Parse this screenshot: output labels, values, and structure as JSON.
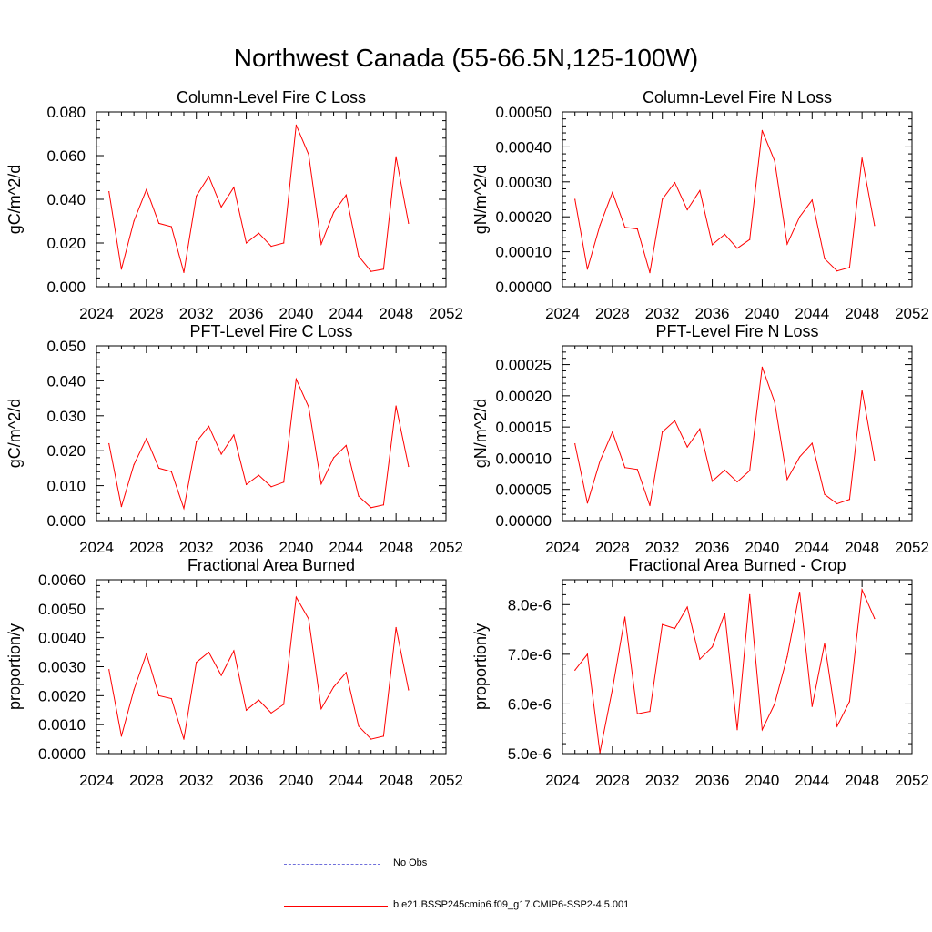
{
  "title": "Northwest Canada (55-66.5N,125-100W)",
  "colors": {
    "series": "#ff0000",
    "obs": "#6f6fdb",
    "axis": "#000000"
  },
  "legend": {
    "obs_label": "No Obs",
    "model_label": "b.e21.BSSP245cmip6.f09_g17.CMIP6-SSP2-4.5.001"
  },
  "chart_data": [
    {
      "type": "line",
      "title": "Column-Level Fire C Loss",
      "ylabel": "gC/m^2/d",
      "xlim": [
        2024,
        2052
      ],
      "ylim": [
        0,
        0.08
      ],
      "xticks": [
        2024,
        2028,
        2032,
        2036,
        2040,
        2044,
        2048,
        2052
      ],
      "yticks": [
        "0.000",
        "0.020",
        "0.040",
        "0.060",
        "0.080"
      ],
      "x": [
        2025,
        2026,
        2027,
        2028,
        2029,
        2030,
        2031,
        2032,
        2033,
        2034,
        2035,
        2036,
        2037,
        2038,
        2039,
        2040,
        2041,
        2042,
        2043,
        2044,
        2045,
        2046,
        2047,
        2048,
        2049
      ],
      "values": [
        0.0435,
        0.008,
        0.03,
        0.0445,
        0.029,
        0.0275,
        0.0065,
        0.0415,
        0.0505,
        0.0365,
        0.0455,
        0.02,
        0.0245,
        0.0185,
        0.02,
        0.074,
        0.0605,
        0.0195,
        0.034,
        0.042,
        0.014,
        0.007,
        0.008,
        0.0595,
        0.029
      ]
    },
    {
      "type": "line",
      "title": "Column-Level Fire N Loss",
      "ylabel": "gN/m^2/d",
      "xlim": [
        2024,
        2052
      ],
      "ylim": [
        0,
        0.0005
      ],
      "xticks": [
        2024,
        2028,
        2032,
        2036,
        2040,
        2044,
        2048,
        2052
      ],
      "yticks": [
        "0.00000",
        "0.00010",
        "0.00020",
        "0.00030",
        "0.00040",
        "0.00050"
      ],
      "x": [
        2025,
        2026,
        2027,
        2028,
        2029,
        2030,
        2031,
        2032,
        2033,
        2034,
        2035,
        2036,
        2037,
        2038,
        2039,
        2040,
        2041,
        2042,
        2043,
        2044,
        2045,
        2046,
        2047,
        2048,
        2049
      ],
      "values": [
        0.00025,
        5e-05,
        0.000175,
        0.00027,
        0.00017,
        0.000165,
        4e-05,
        0.00025,
        0.000298,
        0.00022,
        0.000275,
        0.00012,
        0.00015,
        0.00011,
        0.000135,
        0.000447,
        0.00036,
        0.000122,
        0.0002,
        0.000248,
        8e-05,
        4.5e-05,
        5.5e-05,
        0.000368,
        0.000175
      ]
    },
    {
      "type": "line",
      "title": "PFT-Level Fire C Loss",
      "ylabel": "gC/m^2/d",
      "xlim": [
        2024,
        2052
      ],
      "ylim": [
        0,
        0.05
      ],
      "xticks": [
        2024,
        2028,
        2032,
        2036,
        2040,
        2044,
        2048,
        2052
      ],
      "yticks": [
        "0.000",
        "0.010",
        "0.020",
        "0.030",
        "0.040",
        "0.050"
      ],
      "x": [
        2025,
        2026,
        2027,
        2028,
        2029,
        2030,
        2031,
        2032,
        2033,
        2034,
        2035,
        2036,
        2037,
        2038,
        2039,
        2040,
        2041,
        2042,
        2043,
        2044,
        2045,
        2046,
        2047,
        2048,
        2049
      ],
      "values": [
        0.022,
        0.004,
        0.016,
        0.0235,
        0.015,
        0.014,
        0.0035,
        0.0225,
        0.027,
        0.019,
        0.0245,
        0.0103,
        0.013,
        0.0097,
        0.011,
        0.0405,
        0.0325,
        0.0105,
        0.018,
        0.0215,
        0.007,
        0.0037,
        0.0045,
        0.0328,
        0.0155
      ]
    },
    {
      "type": "line",
      "title": "PFT-Level Fire N Loss",
      "ylabel": "gN/m^2/d",
      "xlim": [
        2024,
        2052
      ],
      "ylim": [
        0,
        0.00028
      ],
      "xticks": [
        2024,
        2028,
        2032,
        2036,
        2040,
        2044,
        2048,
        2052
      ],
      "yticks": [
        "0.00000",
        "0.00005",
        "0.00010",
        "0.00015",
        "0.00020",
        "0.00025"
      ],
      "x": [
        2025,
        2026,
        2027,
        2028,
        2029,
        2030,
        2031,
        2032,
        2033,
        2034,
        2035,
        2036,
        2037,
        2038,
        2039,
        2040,
        2041,
        2042,
        2043,
        2044,
        2045,
        2046,
        2047,
        2048,
        2049
      ],
      "values": [
        0.000123,
        2.8e-05,
        9.5e-05,
        0.000142,
        8.5e-05,
        8.2e-05,
        2.4e-05,
        0.000142,
        0.00016,
        0.000118,
        0.000147,
        6.3e-05,
        8.1e-05,
        6.2e-05,
        8e-05,
        0.000246,
        0.00019,
        6.6e-05,
        0.000102,
        0.000124,
        4.2e-05,
        2.7e-05,
        3.4e-05,
        0.000209,
        9.6e-05
      ]
    },
    {
      "type": "line",
      "title": "Fractional Area Burned",
      "ylabel": "proportion/y",
      "xlim": [
        2024,
        2052
      ],
      "ylim": [
        0,
        0.006
      ],
      "xticks": [
        2024,
        2028,
        2032,
        2036,
        2040,
        2044,
        2048,
        2052
      ],
      "yticks": [
        "0.0000",
        "0.0010",
        "0.0020",
        "0.0030",
        "0.0040",
        "0.0050",
        "0.0060"
      ],
      "x": [
        2025,
        2026,
        2027,
        2028,
        2029,
        2030,
        2031,
        2032,
        2033,
        2034,
        2035,
        2036,
        2037,
        2038,
        2039,
        2040,
        2041,
        2042,
        2043,
        2044,
        2045,
        2046,
        2047,
        2048,
        2049
      ],
      "values": [
        0.0029,
        0.0006,
        0.0022,
        0.00345,
        0.002,
        0.0019,
        0.0005,
        0.00315,
        0.0035,
        0.0027,
        0.00355,
        0.0015,
        0.00185,
        0.0014,
        0.0017,
        0.0054,
        0.00465,
        0.00155,
        0.0023,
        0.0028,
        0.00095,
        0.0005,
        0.0006,
        0.00435,
        0.0022
      ]
    },
    {
      "type": "line",
      "title": "Fractional Area Burned - Crop",
      "ylabel": "proportion/y",
      "xlim": [
        2024,
        2052
      ],
      "ylim": [
        5e-06,
        8.5e-06
      ],
      "xticks": [
        2024,
        2028,
        2032,
        2036,
        2040,
        2044,
        2048,
        2052
      ],
      "ytickvals": [
        5e-06,
        6e-06,
        7e-06,
        8e-06
      ],
      "yticks": [
        "5.0e-6",
        "6.0e-6",
        "7.0e-6",
        "8.0e-6"
      ],
      "x": [
        2025,
        2026,
        2027,
        2028,
        2029,
        2030,
        2031,
        2032,
        2033,
        2034,
        2035,
        2036,
        2037,
        2038,
        2039,
        2040,
        2041,
        2042,
        2043,
        2044,
        2045,
        2046,
        2047,
        2048,
        2049
      ],
      "values": [
        6.68e-06,
        7e-06,
        5.02e-06,
        6.3e-06,
        7.75e-06,
        5.8e-06,
        5.85e-06,
        7.6e-06,
        7.52e-06,
        7.95e-06,
        6.9e-06,
        7.15e-06,
        7.82e-06,
        5.48e-06,
        8.2e-06,
        5.48e-06,
        6e-06,
        6.95e-06,
        8.25e-06,
        5.95e-06,
        7.22e-06,
        5.55e-06,
        6.05e-06,
        8.3e-06,
        7.72e-06
      ]
    }
  ]
}
